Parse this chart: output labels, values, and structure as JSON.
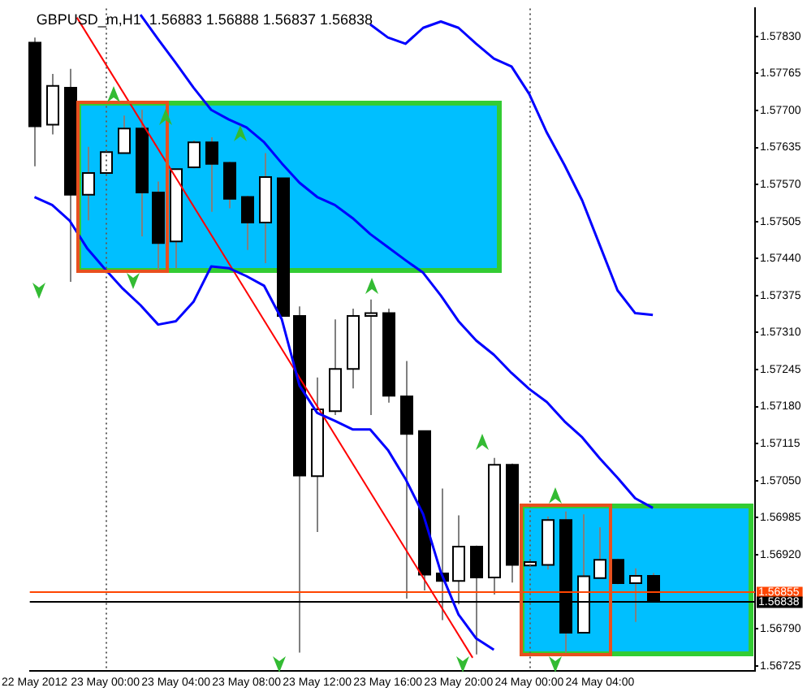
{
  "chart_data": {
    "type": "candlestick",
    "title": "GBPUSD_m,H1  1.56883 1.56888 1.56837 1.56838",
    "x": [
      "2012-05-22T20:00",
      "2012-05-22T21:00",
      "2012-05-22T22:00",
      "2012-05-22T23:00",
      "2012-05-23T00:00",
      "2012-05-23T01:00",
      "2012-05-23T02:00",
      "2012-05-23T03:00",
      "2012-05-23T04:00",
      "2012-05-23T05:00",
      "2012-05-23T06:00",
      "2012-05-23T07:00",
      "2012-05-23T08:00",
      "2012-05-23T09:00",
      "2012-05-23T10:00",
      "2012-05-23T11:00",
      "2012-05-23T12:00",
      "2012-05-23T13:00",
      "2012-05-23T14:00",
      "2012-05-23T15:00",
      "2012-05-23T16:00",
      "2012-05-23T17:00",
      "2012-05-23T18:00",
      "2012-05-23T19:00",
      "2012-05-23T20:00",
      "2012-05-23T21:00",
      "2012-05-23T22:00",
      "2012-05-23T23:00",
      "2012-05-24T00:00",
      "2012-05-24T01:00",
      "2012-05-24T02:00",
      "2012-05-24T03:00",
      "2012-05-24T04:00",
      "2012-05-24T05:00",
      "2012-05-24T06:00",
      "2012-05-24T07:00"
    ],
    "ohlc": [
      [
        1.57819,
        1.57828,
        1.57602,
        1.57672
      ],
      [
        1.57675,
        1.57764,
        1.57658,
        1.57743
      ],
      [
        1.5774,
        1.57773,
        1.57399,
        1.57552
      ],
      [
        1.57552,
        1.57636,
        1.57507,
        1.5759
      ],
      [
        1.5759,
        1.5763,
        1.57588,
        1.57627
      ],
      [
        1.57625,
        1.57691,
        1.57625,
        1.57668
      ],
      [
        1.57668,
        1.57701,
        1.57479,
        1.57556
      ],
      [
        1.57556,
        1.57575,
        1.57418,
        1.57467
      ],
      [
        1.5747,
        1.57597,
        1.57423,
        1.57597
      ],
      [
        1.576,
        1.57647,
        1.57598,
        1.57644
      ],
      [
        1.57644,
        1.57653,
        1.57522,
        1.57606
      ],
      [
        1.57608,
        1.5761,
        1.57528,
        1.57545
      ],
      [
        1.57548,
        1.5755,
        1.57455,
        1.57503
      ],
      [
        1.57503,
        1.57625,
        1.57432,
        1.57583
      ],
      [
        1.57581,
        1.57581,
        1.57339,
        1.57339
      ],
      [
        1.57339,
        1.57356,
        1.56748,
        1.57059
      ],
      [
        1.57058,
        1.57231,
        1.5696,
        1.57175
      ],
      [
        1.57172,
        1.57333,
        1.57165,
        1.57246
      ],
      [
        1.57246,
        1.57352,
        1.57212,
        1.57339
      ],
      [
        1.57339,
        1.57368,
        1.57165,
        1.57344
      ],
      [
        1.57344,
        1.57352,
        1.57187,
        1.57199
      ],
      [
        1.57198,
        1.5726,
        1.56843,
        1.57132
      ],
      [
        1.57137,
        1.57137,
        1.56857,
        1.56885
      ],
      [
        1.56887,
        1.57036,
        1.56805,
        1.56874
      ],
      [
        1.56874,
        1.56989,
        1.56833,
        1.56934
      ],
      [
        1.56934,
        1.56936,
        1.56745,
        1.5688
      ],
      [
        1.5688,
        1.5709,
        1.5685,
        1.57078
      ],
      [
        1.57078,
        1.5708,
        1.56871,
        1.56902
      ],
      [
        1.56901,
        1.56908,
        1.56899,
        1.56907
      ],
      [
        1.56902,
        1.56987,
        1.56894,
        1.56981
      ],
      [
        1.56981,
        1.56996,
        1.56748,
        1.56783
      ],
      [
        1.56783,
        1.56991,
        1.56783,
        1.56882
      ],
      [
        1.56879,
        1.56968,
        1.56879,
        1.56911
      ],
      [
        1.56911,
        1.56913,
        1.56868,
        1.5687
      ],
      [
        1.5687,
        1.56896,
        1.56802,
        1.56883
      ],
      [
        1.56883,
        1.56888,
        1.56837,
        1.56838
      ]
    ],
    "series": [
      {
        "type": "line",
        "color": "#0000ff",
        "values": [
          null,
          null,
          null,
          null,
          null,
          null,
          null,
          null,
          null,
          null,
          null,
          null,
          null,
          null,
          null,
          null,
          null,
          null,
          null,
          1.57851,
          1.57828,
          1.57817,
          1.57845,
          1.57856,
          1.57845,
          1.57817,
          1.57791,
          1.57777,
          1.57729,
          1.57661,
          1.57604,
          1.57542,
          1.57463,
          1.57384,
          1.57344,
          1.57341
        ]
      },
      {
        "type": "line",
        "color": "#0000ff",
        "values": [
          null,
          null,
          null,
          null,
          null,
          null,
          1.57868,
          1.57825,
          1.57783,
          1.5774,
          1.57701,
          1.57684,
          1.5767,
          1.57644,
          1.57607,
          1.57573,
          1.57548,
          1.57534,
          1.57511,
          1.57483,
          1.5746,
          1.57437,
          1.57415,
          1.57375,
          1.5733,
          1.57296,
          1.57271,
          1.57239,
          1.57211,
          1.57188,
          1.57154,
          1.57126,
          1.57089,
          1.57055,
          1.57019,
          1.57002
        ]
      },
      {
        "type": "line",
        "color": "#0000ff",
        "values": [
          1.57548,
          1.57534,
          1.57506,
          1.57457,
          1.57421,
          1.57387,
          1.57358,
          1.57324,
          1.5733,
          1.57364,
          1.57426,
          1.57423,
          1.57409,
          1.57392,
          1.57333,
          1.57217,
          1.57169,
          1.57155,
          1.5714,
          1.5714,
          1.57104,
          1.57053,
          1.56991,
          1.56889,
          1.56815,
          1.56773,
          1.56753,
          null,
          null,
          null,
          null,
          null,
          null,
          null,
          null,
          null
        ]
      },
      {
        "type": "line",
        "color": "#ff0000",
        "x": [
          "2012-05-22T22:24",
          "2012-05-23T20:48"
        ],
        "values": [
          1.57863,
          1.56739
        ]
      }
    ],
    "xlim": [
      "2012-05-22T19:44",
      "2012-05-24T12:47"
    ],
    "xticks": [
      {
        "value": "2012-05-22T20:00",
        "label": "22 May 2012"
      },
      {
        "value": "2012-05-23T00:00",
        "label": "23 May 00:00"
      },
      {
        "value": "2012-05-23T04:00",
        "label": "23 May 04:00"
      },
      {
        "value": "2012-05-23T08:00",
        "label": "23 May 08:00"
      },
      {
        "value": "2012-05-23T12:00",
        "label": "23 May 12:00"
      },
      {
        "value": "2012-05-23T16:00",
        "label": "23 May 16:00"
      },
      {
        "value": "2012-05-23T20:00",
        "label": "23 May 20:00"
      },
      {
        "value": "2012-05-24T00:00",
        "label": "24 May 00:00"
      },
      {
        "value": "2012-05-24T04:00",
        "label": "24 May 04:00"
      }
    ],
    "ylim": [
      1.56716,
      1.57879
    ],
    "yticks": [
      {
        "value": 1.5783,
        "label": "1.57830"
      },
      {
        "value": 1.57765,
        "label": "1.57765"
      },
      {
        "value": 1.577,
        "label": "1.57700"
      },
      {
        "value": 1.57635,
        "label": "1.57635"
      },
      {
        "value": 1.5757,
        "label": "1.57570"
      },
      {
        "value": 1.57505,
        "label": "1.57505"
      },
      {
        "value": 1.5744,
        "label": "1.57440"
      },
      {
        "value": 1.57375,
        "label": "1.57375"
      },
      {
        "value": 1.5731,
        "label": "1.57310"
      },
      {
        "value": 1.57245,
        "label": "1.57245"
      },
      {
        "value": 1.5718,
        "label": "1.57180"
      },
      {
        "value": 1.57115,
        "label": "1.57115"
      },
      {
        "value": 1.5705,
        "label": "1.57050"
      },
      {
        "value": 1.56985,
        "label": "1.56985"
      },
      {
        "value": 1.5692,
        "label": "1.56920"
      },
      {
        "value": 1.5679,
        "label": "1.56790"
      },
      {
        "value": 1.56725,
        "label": "1.56725"
      }
    ],
    "ref_lines": [
      {
        "axis": "x",
        "value": "2012-05-23T00:00",
        "color": "#606060",
        "line_style": "dotted"
      },
      {
        "axis": "x",
        "value": "2012-05-24T00:00",
        "color": "#606060",
        "line_style": "dotted"
      },
      {
        "axis": "y",
        "value": 1.56855,
        "label": "1.56855",
        "color": "#ff4500"
      },
      {
        "axis": "y",
        "value": 1.56838,
        "label": "1.56838",
        "color": "#000000"
      }
    ]
  }
}
